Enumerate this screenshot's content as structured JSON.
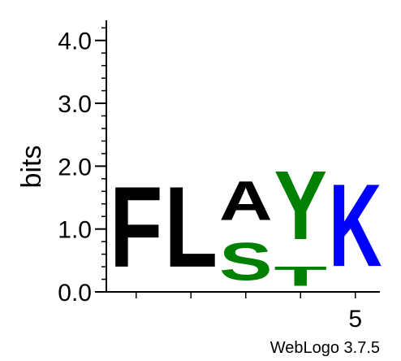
{
  "chart_data": {
    "type": "sequence-logo",
    "ylabel": "bits",
    "ylim": [
      0,
      4.32
    ],
    "yticks": [
      {
        "value": 0,
        "label": "0.0"
      },
      {
        "value": 1,
        "label": "1.0"
      },
      {
        "value": 2,
        "label": "2.0"
      },
      {
        "value": 3,
        "label": "3.0"
      },
      {
        "value": 4,
        "label": "4.0"
      }
    ],
    "xticks": [
      {
        "position": 5,
        "label": "5"
      }
    ],
    "positions": [
      {
        "position": 1,
        "stack": [
          {
            "letter": "F",
            "bits": 2.05,
            "color": "#000000"
          }
        ]
      },
      {
        "position": 2,
        "stack": [
          {
            "letter": "L",
            "bits": 2.05,
            "color": "#000000"
          }
        ]
      },
      {
        "position": 3,
        "stack": [
          {
            "letter": "S",
            "bits": 0.95,
            "color": "#008000"
          },
          {
            "letter": "A",
            "bits": 1.0,
            "color": "#000000"
          }
        ]
      },
      {
        "position": 4,
        "stack": [
          {
            "letter": "T",
            "bits": 0.5,
            "color": "#008000"
          },
          {
            "letter": "Y",
            "bits": 1.75,
            "color": "#008000"
          }
        ]
      },
      {
        "position": 5,
        "stack": [
          {
            "letter": "K",
            "bits": 2.1,
            "color": "#0000ff"
          }
        ]
      }
    ],
    "colors": {
      "hydrophobic": "#000000",
      "polar": "#008000",
      "basic": "#0000ff"
    }
  },
  "credit": "WebLogo 3.7.5"
}
